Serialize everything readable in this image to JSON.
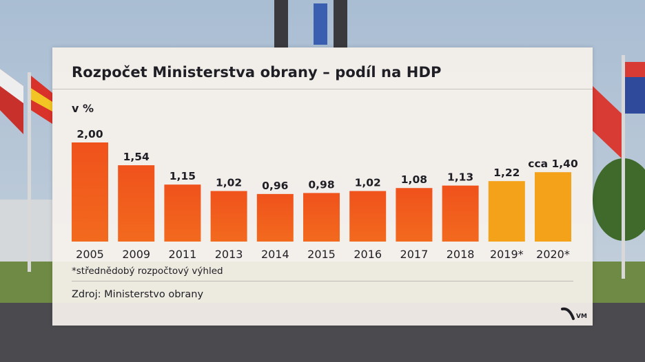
{
  "header": {
    "title": "Rozpočet Ministerstva obrany – podíl na HDP",
    "unit": "v %"
  },
  "footer": {
    "note": "*střednědobý rozpočtový výhled",
    "source": "Zdroj: Ministerstvo obrany",
    "logo_text": "VM"
  },
  "colors": {
    "actual_bar": "#f0521c",
    "forecast_bar": "#f3a21a"
  },
  "chart_data": {
    "type": "bar",
    "title": "Rozpočet Ministerstva obrany – podíl na HDP",
    "ylabel": "v %",
    "categories": [
      "2005",
      "2009",
      "2011",
      "2013",
      "2014",
      "2015",
      "2016",
      "2017",
      "2018",
      "2019*",
      "2020*"
    ],
    "values": [
      2.0,
      1.54,
      1.15,
      1.02,
      0.96,
      0.98,
      1.02,
      1.08,
      1.13,
      1.22,
      1.4
    ],
    "value_labels": [
      "2,00",
      "1,54",
      "1,15",
      "1,02",
      "0,96",
      "0,98",
      "1,02",
      "1,08",
      "1,13",
      "1,22",
      "cca 1,40"
    ],
    "forecast": [
      false,
      false,
      false,
      false,
      false,
      false,
      false,
      false,
      false,
      true,
      true
    ],
    "ylim": [
      0,
      2.0
    ],
    "grid": false,
    "legend": "none"
  }
}
